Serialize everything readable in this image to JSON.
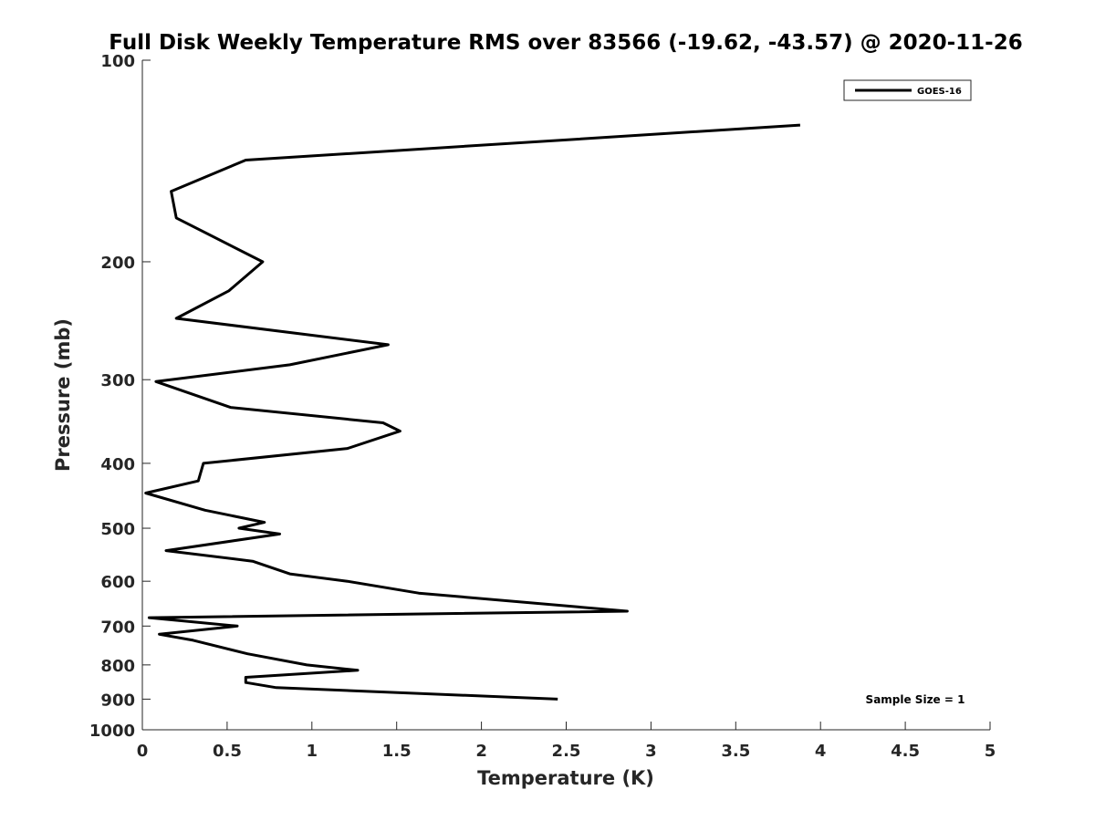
{
  "chart_data": {
    "type": "line",
    "title": "Full Disk Weekly Temperature RMS over 83566 (-19.62, -43.57) @ 2020-11-26",
    "xlabel": "Temperature (K)",
    "ylabel": "Pressure (mb)",
    "xlim": [
      0,
      5
    ],
    "ylim": [
      100,
      1000
    ],
    "y_scale": "log",
    "y_reversed": true,
    "grid": false,
    "legend": "top-right",
    "x_ticks": [
      0,
      0.5,
      1,
      1.5,
      2,
      2.5,
      3,
      3.5,
      4,
      4.5,
      5
    ],
    "x_tick_labels": [
      "0",
      "0.5",
      "1",
      "1.5",
      "2",
      "2.5",
      "3",
      "3.5",
      "4",
      "4.5",
      "5"
    ],
    "y_ticks": [
      100,
      200,
      300,
      400,
      500,
      600,
      700,
      800,
      900,
      1000
    ],
    "y_tick_labels": [
      "100",
      "200",
      "300",
      "400",
      "500",
      "600",
      "700",
      "800",
      "900",
      "1000"
    ],
    "annotation": "Sample Size = 1",
    "series": [
      {
        "name": "GOES-16",
        "color": "#000000",
        "points": [
          {
            "x": 3.88,
            "p": 125
          },
          {
            "x": 0.61,
            "p": 141
          },
          {
            "x": 0.17,
            "p": 157
          },
          {
            "x": 0.2,
            "p": 172
          },
          {
            "x": 0.71,
            "p": 200
          },
          {
            "x": 0.51,
            "p": 221
          },
          {
            "x": 0.2,
            "p": 243
          },
          {
            "x": 1.45,
            "p": 266
          },
          {
            "x": 0.87,
            "p": 285
          },
          {
            "x": 0.08,
            "p": 302
          },
          {
            "x": 0.52,
            "p": 330
          },
          {
            "x": 1.42,
            "p": 348
          },
          {
            "x": 1.52,
            "p": 358
          },
          {
            "x": 1.21,
            "p": 380
          },
          {
            "x": 0.36,
            "p": 400
          },
          {
            "x": 0.33,
            "p": 425
          },
          {
            "x": 0.02,
            "p": 443
          },
          {
            "x": 0.37,
            "p": 470
          },
          {
            "x": 0.72,
            "p": 490
          },
          {
            "x": 0.57,
            "p": 500
          },
          {
            "x": 0.81,
            "p": 510
          },
          {
            "x": 0.14,
            "p": 540
          },
          {
            "x": 0.65,
            "p": 560
          },
          {
            "x": 0.87,
            "p": 585
          },
          {
            "x": 1.21,
            "p": 600
          },
          {
            "x": 1.63,
            "p": 625
          },
          {
            "x": 2.86,
            "p": 665
          },
          {
            "x": 0.04,
            "p": 680
          },
          {
            "x": 0.56,
            "p": 700
          },
          {
            "x": 0.1,
            "p": 720
          },
          {
            "x": 0.3,
            "p": 735
          },
          {
            "x": 0.62,
            "p": 770
          },
          {
            "x": 0.97,
            "p": 800
          },
          {
            "x": 1.27,
            "p": 815
          },
          {
            "x": 0.61,
            "p": 835
          },
          {
            "x": 0.61,
            "p": 850
          },
          {
            "x": 0.79,
            "p": 865
          },
          {
            "x": 2.45,
            "p": 900
          }
        ]
      }
    ]
  }
}
